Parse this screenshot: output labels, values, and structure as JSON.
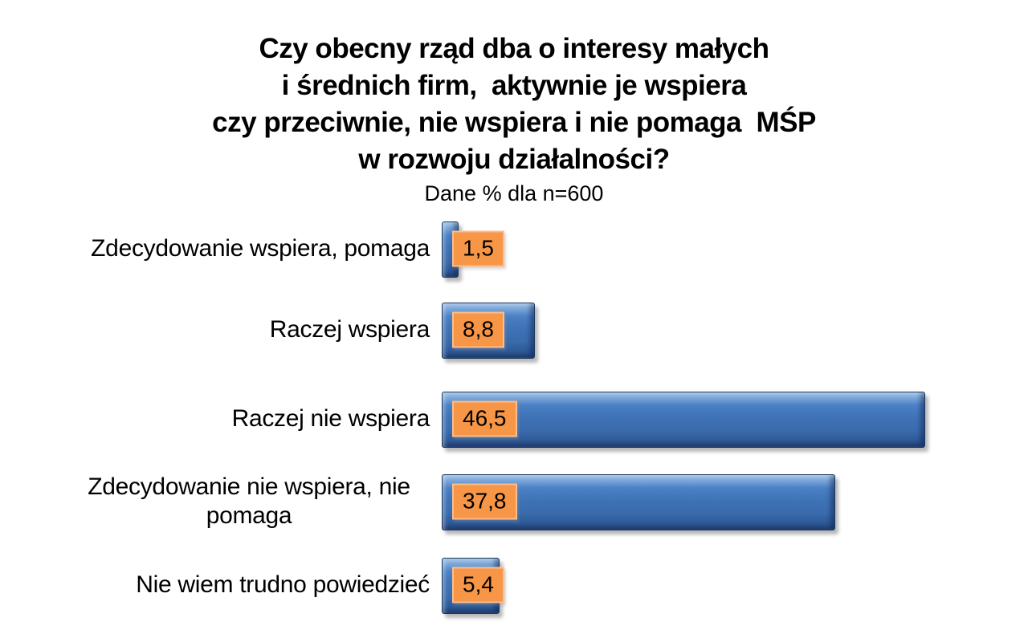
{
  "title": {
    "lines": [
      "Czy obecny rząd dba o interesy małych",
      "i średnich firm,  aktywnie je wspiera",
      "czy przeciwnie, nie wspiera i nie pomaga  MŚP",
      "w rozwoju działalności?"
    ],
    "subtitle": "Dane % dla n=600"
  },
  "chart_data": {
    "type": "bar",
    "orientation": "horizontal",
    "title": "Czy obecny rząd dba o interesy małych i średnich firm, aktywnie je wspiera czy przeciwnie, nie wspiera i nie pomaga MŚP w rozwoju działalności?",
    "subtitle": "Dane % dla n=600",
    "unit": "%",
    "sample_size": "n=600",
    "categories": [
      "Zdecydowanie wspiera, pomaga",
      "Raczej wspiera",
      "Raczej nie wspiera",
      "Zdecydowanie nie wspiera, nie pomaga",
      "Nie wiem trudno powiedzieć"
    ],
    "values": [
      1.5,
      8.8,
      46.5,
      37.8,
      5.4
    ],
    "value_labels": [
      "1,5",
      "8,8",
      "46,5",
      "37,8",
      "5,4"
    ],
    "xlim": [
      0,
      48
    ],
    "grid": false,
    "legend": false,
    "colors": {
      "bar": "#3E73B6",
      "bar_highlight": "#9CC3E8",
      "bar_dark": "#26497F",
      "bar_outline": "#17375E",
      "value_label_bg": "#F79646",
      "value_label_border": "#FBBE8E",
      "text": "#000000",
      "background": "#FFFFFF"
    }
  }
}
